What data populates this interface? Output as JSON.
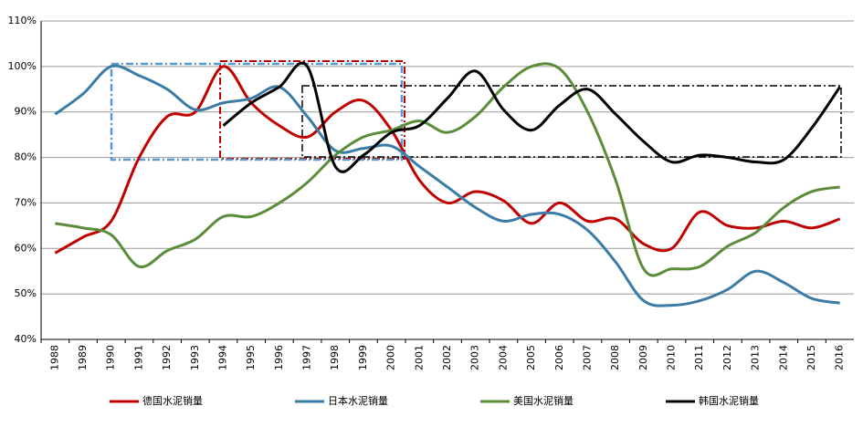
{
  "chart_data": {
    "type": "line",
    "categories": [
      "1988",
      "1989",
      "1990",
      "1991",
      "1992",
      "1993",
      "1994",
      "1995",
      "1996",
      "1997",
      "1998",
      "1999",
      "2000",
      "2001",
      "2002",
      "2003",
      "2004",
      "2005",
      "2006",
      "2007",
      "2008",
      "2009",
      "2010",
      "2011",
      "2012",
      "2013",
      "2014",
      "2015",
      "2016"
    ],
    "series": [
      {
        "name": "德国水泥销量",
        "color": "#c00000",
        "values": [
          59,
          62.5,
          66,
          80,
          89,
          90,
          100,
          92,
          87,
          84.5,
          90,
          92.5,
          86,
          75,
          70,
          72.5,
          70.5,
          65.5,
          70,
          66,
          66.5,
          61,
          60,
          68,
          65,
          64.5,
          66,
          64.5,
          66.5
        ]
      },
      {
        "name": "日本水泥销量",
        "color": "#3a7ca5",
        "values": [
          89.5,
          94,
          100,
          98,
          95,
          90.5,
          92,
          93,
          95.5,
          89,
          81.5,
          82,
          82.5,
          78,
          73.5,
          69,
          66,
          67.5,
          67.5,
          64,
          57,
          48.5,
          47.5,
          48.5,
          51,
          55,
          52.5,
          49,
          48
        ]
      },
      {
        "name": "美国水泥销量",
        "color": "#5b8c3a",
        "values": [
          65.5,
          64.5,
          63,
          56,
          59.5,
          62,
          67,
          67,
          70,
          74.5,
          80.5,
          84.5,
          86,
          88,
          85.5,
          89,
          95.5,
          100,
          99.5,
          90,
          75,
          55.5,
          55.5,
          56,
          60.5,
          63.5,
          69,
          72.5,
          73.5
        ]
      },
      {
        "name": "韩国水泥销量",
        "color": "#000000",
        "values": [
          null,
          null,
          null,
          null,
          null,
          null,
          87,
          92,
          95.5,
          100,
          78,
          80.5,
          85.5,
          87,
          93,
          99,
          90.5,
          86,
          91.5,
          95,
          89.5,
          83.5,
          79,
          80.5,
          80,
          79,
          79.5,
          86.5,
          95.5
        ]
      }
    ],
    "ylim": [
      40,
      110
    ],
    "yticks": [
      {
        "value": 40,
        "label": "40%"
      },
      {
        "value": 50,
        "label": "50%"
      },
      {
        "value": 60,
        "label": "60%"
      },
      {
        "value": 70,
        "label": "70%"
      },
      {
        "value": 80,
        "label": "80%"
      },
      {
        "value": 90,
        "label": "90%"
      },
      {
        "value": 100,
        "label": "100%"
      },
      {
        "value": 110,
        "label": "110%"
      }
    ],
    "grid": true,
    "legend": "bottom"
  }
}
